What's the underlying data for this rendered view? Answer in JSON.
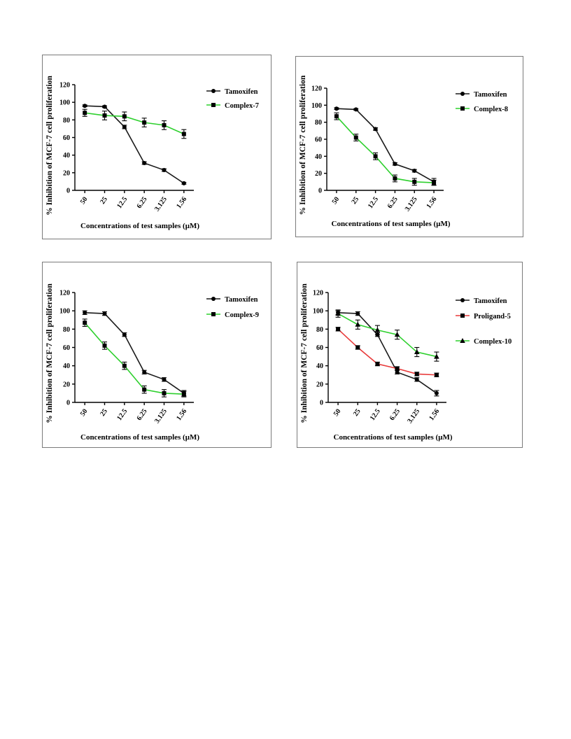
{
  "chart_data": [
    {
      "type": "line",
      "ylabel": "% Inhibition of MCF-7 cell proliferation",
      "xlabel": "Concentrations of test samples (μM)",
      "categories": [
        "50",
        "25",
        "12.5",
        "6.25",
        "3.125",
        "1.56"
      ],
      "ylim": [
        0,
        120
      ],
      "yticks": [
        "0",
        "20",
        "40",
        "60",
        "80",
        "100",
        "120"
      ],
      "legend_position": "top-right",
      "series": [
        {
          "name": "Tamoxifen",
          "values": [
            96,
            95,
            72,
            31,
            23,
            8
          ],
          "errors": [
            1,
            1,
            2,
            1.5,
            1.5,
            1
          ],
          "color": "#1a1a1a",
          "marker": "circle"
        },
        {
          "name": "Complex-7",
          "values": [
            88,
            85,
            84,
            77,
            74,
            64
          ],
          "errors": [
            4,
            5,
            5,
            5,
            5,
            5
          ],
          "color": "#2ed02e",
          "marker": "square"
        }
      ]
    },
    {
      "type": "line",
      "ylabel": "% Inhibition of MCF-7 cell proliferation",
      "xlabel": "Concentrations of test samples (μM)",
      "categories": [
        "50",
        "25",
        "12.5",
        "6.25",
        "3.125",
        "1.56"
      ],
      "ylim": [
        0,
        120
      ],
      "yticks": [
        "0",
        "20",
        "40",
        "60",
        "80",
        "100",
        "120"
      ],
      "legend_position": "top-right",
      "series": [
        {
          "name": "Tamoxifen",
          "values": [
            96,
            95,
            72,
            31,
            23,
            10
          ],
          "errors": [
            1,
            1,
            1.5,
            1.5,
            1.5,
            4
          ],
          "color": "#1a1a1a",
          "marker": "circle"
        },
        {
          "name": "Complex-8",
          "values": [
            87,
            62,
            40,
            14,
            10,
            9
          ],
          "errors": [
            4,
            4,
            4,
            4,
            4,
            3
          ],
          "color": "#2ed02e",
          "marker": "square"
        }
      ]
    },
    {
      "type": "line",
      "ylabel": "% Inhibition of MCF-7 cell proliferation",
      "xlabel": "Concentrations of test samples (μM)",
      "categories": [
        "50",
        "25",
        "12.5",
        "6.25",
        "3.125",
        "1.56"
      ],
      "ylim": [
        0,
        120
      ],
      "yticks": [
        "0",
        "20",
        "40",
        "60",
        "80",
        "100",
        "120"
      ],
      "legend_position": "top-right",
      "series": [
        {
          "name": "Tamoxifen",
          "values": [
            98,
            97,
            74,
            33,
            25,
            10
          ],
          "errors": [
            2,
            2,
            2,
            2,
            2,
            3
          ],
          "color": "#1a1a1a",
          "marker": "circle"
        },
        {
          "name": "Complex-9",
          "values": [
            87,
            62,
            40,
            14,
            10,
            9
          ],
          "errors": [
            4,
            4,
            4,
            4,
            4,
            3
          ],
          "color": "#2ed02e",
          "marker": "square"
        }
      ]
    },
    {
      "type": "line",
      "ylabel": "% Inhibition of MCF-7 cell proliferation",
      "xlabel": "Concentrations of test samples (μM)",
      "categories": [
        "50",
        "25",
        "12.5",
        "6.25",
        "3.125",
        "1.56"
      ],
      "ylim": [
        0,
        120
      ],
      "yticks": [
        "0",
        "20",
        "40",
        "60",
        "80",
        "100",
        "120"
      ],
      "legend_position": "top-right",
      "series": [
        {
          "name": "Tamoxifen",
          "values": [
            98,
            97,
            74,
            33,
            25,
            10
          ],
          "errors": [
            2,
            2,
            2,
            2,
            2,
            3
          ],
          "color": "#1a1a1a",
          "marker": "circle"
        },
        {
          "name": "Proligand-5",
          "values": [
            80,
            60,
            42,
            37,
            31,
            30
          ],
          "errors": [
            2,
            2,
            2,
            2,
            2,
            2
          ],
          "color": "#e83a3a",
          "marker": "square"
        },
        {
          "name": "Complex-10",
          "values": [
            97,
            85,
            79,
            74,
            55,
            50
          ],
          "errors": [
            4,
            5,
            5,
            5,
            5,
            5
          ],
          "color": "#2ed02e",
          "marker": "triangle"
        }
      ]
    }
  ]
}
